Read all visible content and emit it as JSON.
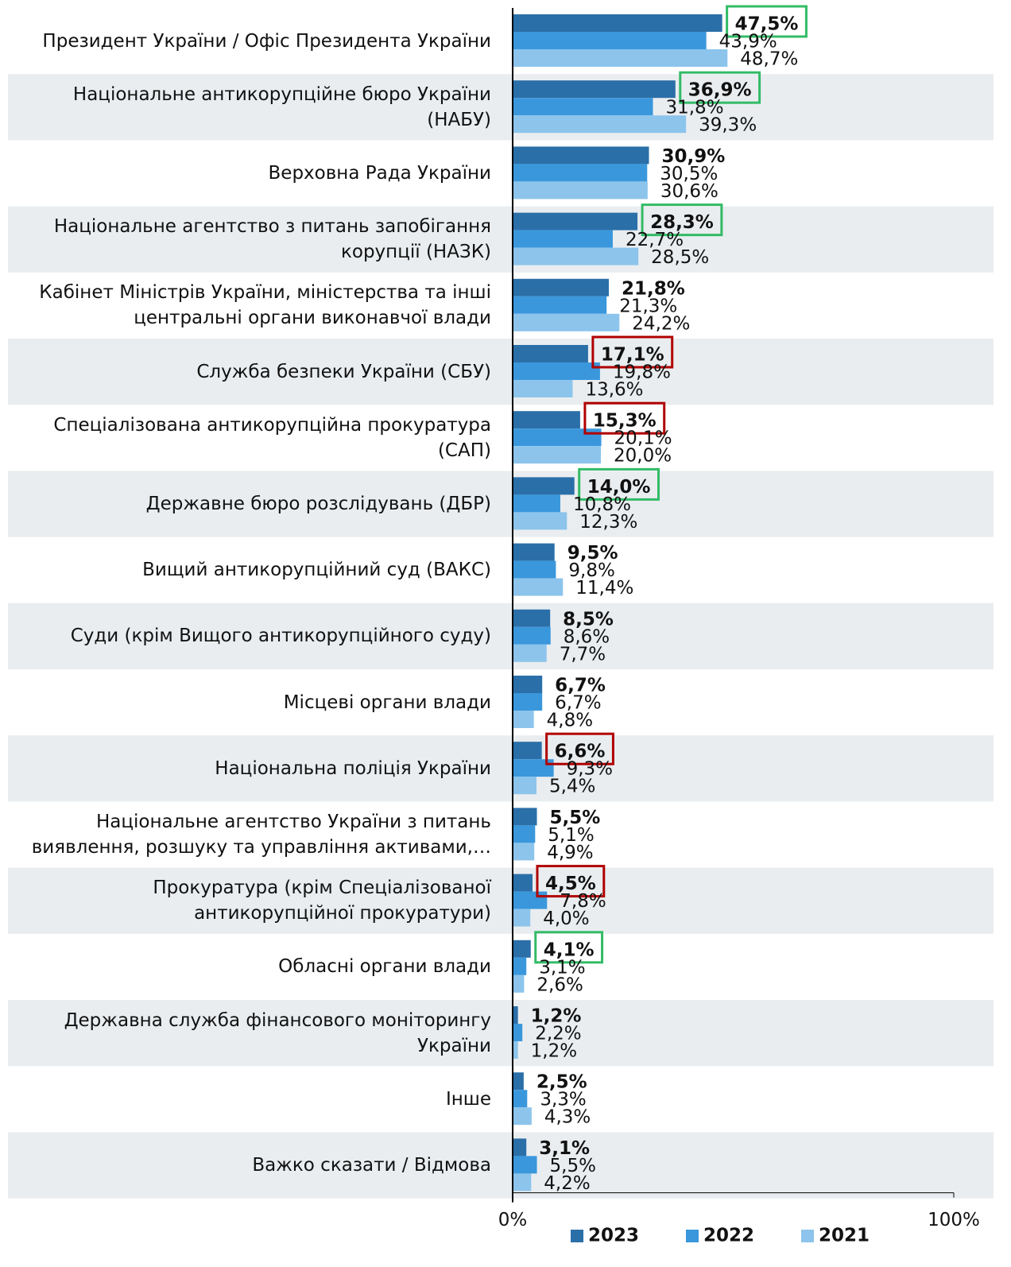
{
  "chart_data": {
    "type": "hbar",
    "categories": [
      "Президент України / Офіс Президента України",
      "Національне антикорупційне бюро України\n(НАБУ)",
      "Верховна Рада України",
      "Національне агентство з питань запобігання\nкорупції (НАЗК)",
      "Кабінет Міністрів України, міністерства та інші\nцентральні органи виконавчої влади",
      "Служба безпеки України (СБУ)",
      "Спеціалізована антикорупційна прокуратура\n(САП)",
      "Державне бюро розслідувань (ДБР)",
      "Вищий антикорупційний суд (ВАКС)",
      "Суди (крім Вищого антикорупційного суду)",
      "Місцеві органи влади",
      "Національна поліція України",
      "Національне агентство України з питань\nвиявлення, розшуку та управління активами,…",
      "Прокуратура (крім Спеціалізованої\nантикорупційної прокуратури)",
      "Обласні органи влади",
      "Державна служба фінансового моніторингу\nУкраїни",
      "Інше",
      "Важко сказати / Відмова"
    ],
    "series": [
      {
        "name": "2023",
        "color": "#2b6fa8",
        "bold": true,
        "values": [
          47.5,
          36.9,
          30.9,
          28.3,
          21.8,
          17.1,
          15.3,
          14.0,
          9.5,
          8.5,
          6.7,
          6.6,
          5.5,
          4.5,
          4.1,
          1.2,
          2.5,
          3.1
        ],
        "value_labels": [
          "47,5%",
          "36,9%",
          "30,9%",
          "28,3%",
          "21,8%",
          "17,1%",
          "15,3%",
          "14,0%",
          "9,5%",
          "8,5%",
          "6,7%",
          "6,6%",
          "5,5%",
          "4,5%",
          "4,1%",
          "1,2%",
          "2,5%",
          "3,1%"
        ],
        "box_colors": [
          "#33bb66",
          "#33bb66",
          null,
          "#33bb66",
          null,
          "#b00000",
          "#b00000",
          "#33bb66",
          null,
          null,
          null,
          "#b00000",
          null,
          "#b00000",
          "#33bb66",
          null,
          null,
          null
        ]
      },
      {
        "name": "2022",
        "color": "#3a97dc",
        "values": [
          43.9,
          31.8,
          30.5,
          22.7,
          21.3,
          19.8,
          20.1,
          10.8,
          9.8,
          8.6,
          6.7,
          9.3,
          5.1,
          7.8,
          3.1,
          2.2,
          3.3,
          5.5
        ],
        "value_labels": [
          "43,9%",
          "31,8%",
          "30,5%",
          "22,7%",
          "21,3%",
          "19,8%",
          "20,1%",
          "10,8%",
          "9,8%",
          "8,6%",
          "6,7%",
          "9,3%",
          "5,1%",
          "7,8%",
          "3,1%",
          "2,2%",
          "3,3%",
          "5,5%"
        ]
      },
      {
        "name": "2021",
        "color": "#8cc4ec",
        "values": [
          48.7,
          39.3,
          30.6,
          28.5,
          24.2,
          13.6,
          20.0,
          12.3,
          11.4,
          7.7,
          4.8,
          5.4,
          4.9,
          4.0,
          2.6,
          1.2,
          4.3,
          4.2
        ],
        "value_labels": [
          "48,7%",
          "39,3%",
          "30,6%",
          "28,5%",
          "24,2%",
          "13,6%",
          "20,0%",
          "12,3%",
          "11,4%",
          "7,7%",
          "4,8%",
          "5,4%",
          "4,9%",
          "4,0%",
          "2,6%",
          "1,2%",
          "4,3%",
          "4,2%"
        ]
      }
    ],
    "xlim": [
      0,
      100
    ],
    "xticks": [
      {
        "value": 0,
        "label": "0%"
      },
      {
        "value": 100,
        "label": "100%"
      }
    ],
    "legend": "bottom"
  }
}
